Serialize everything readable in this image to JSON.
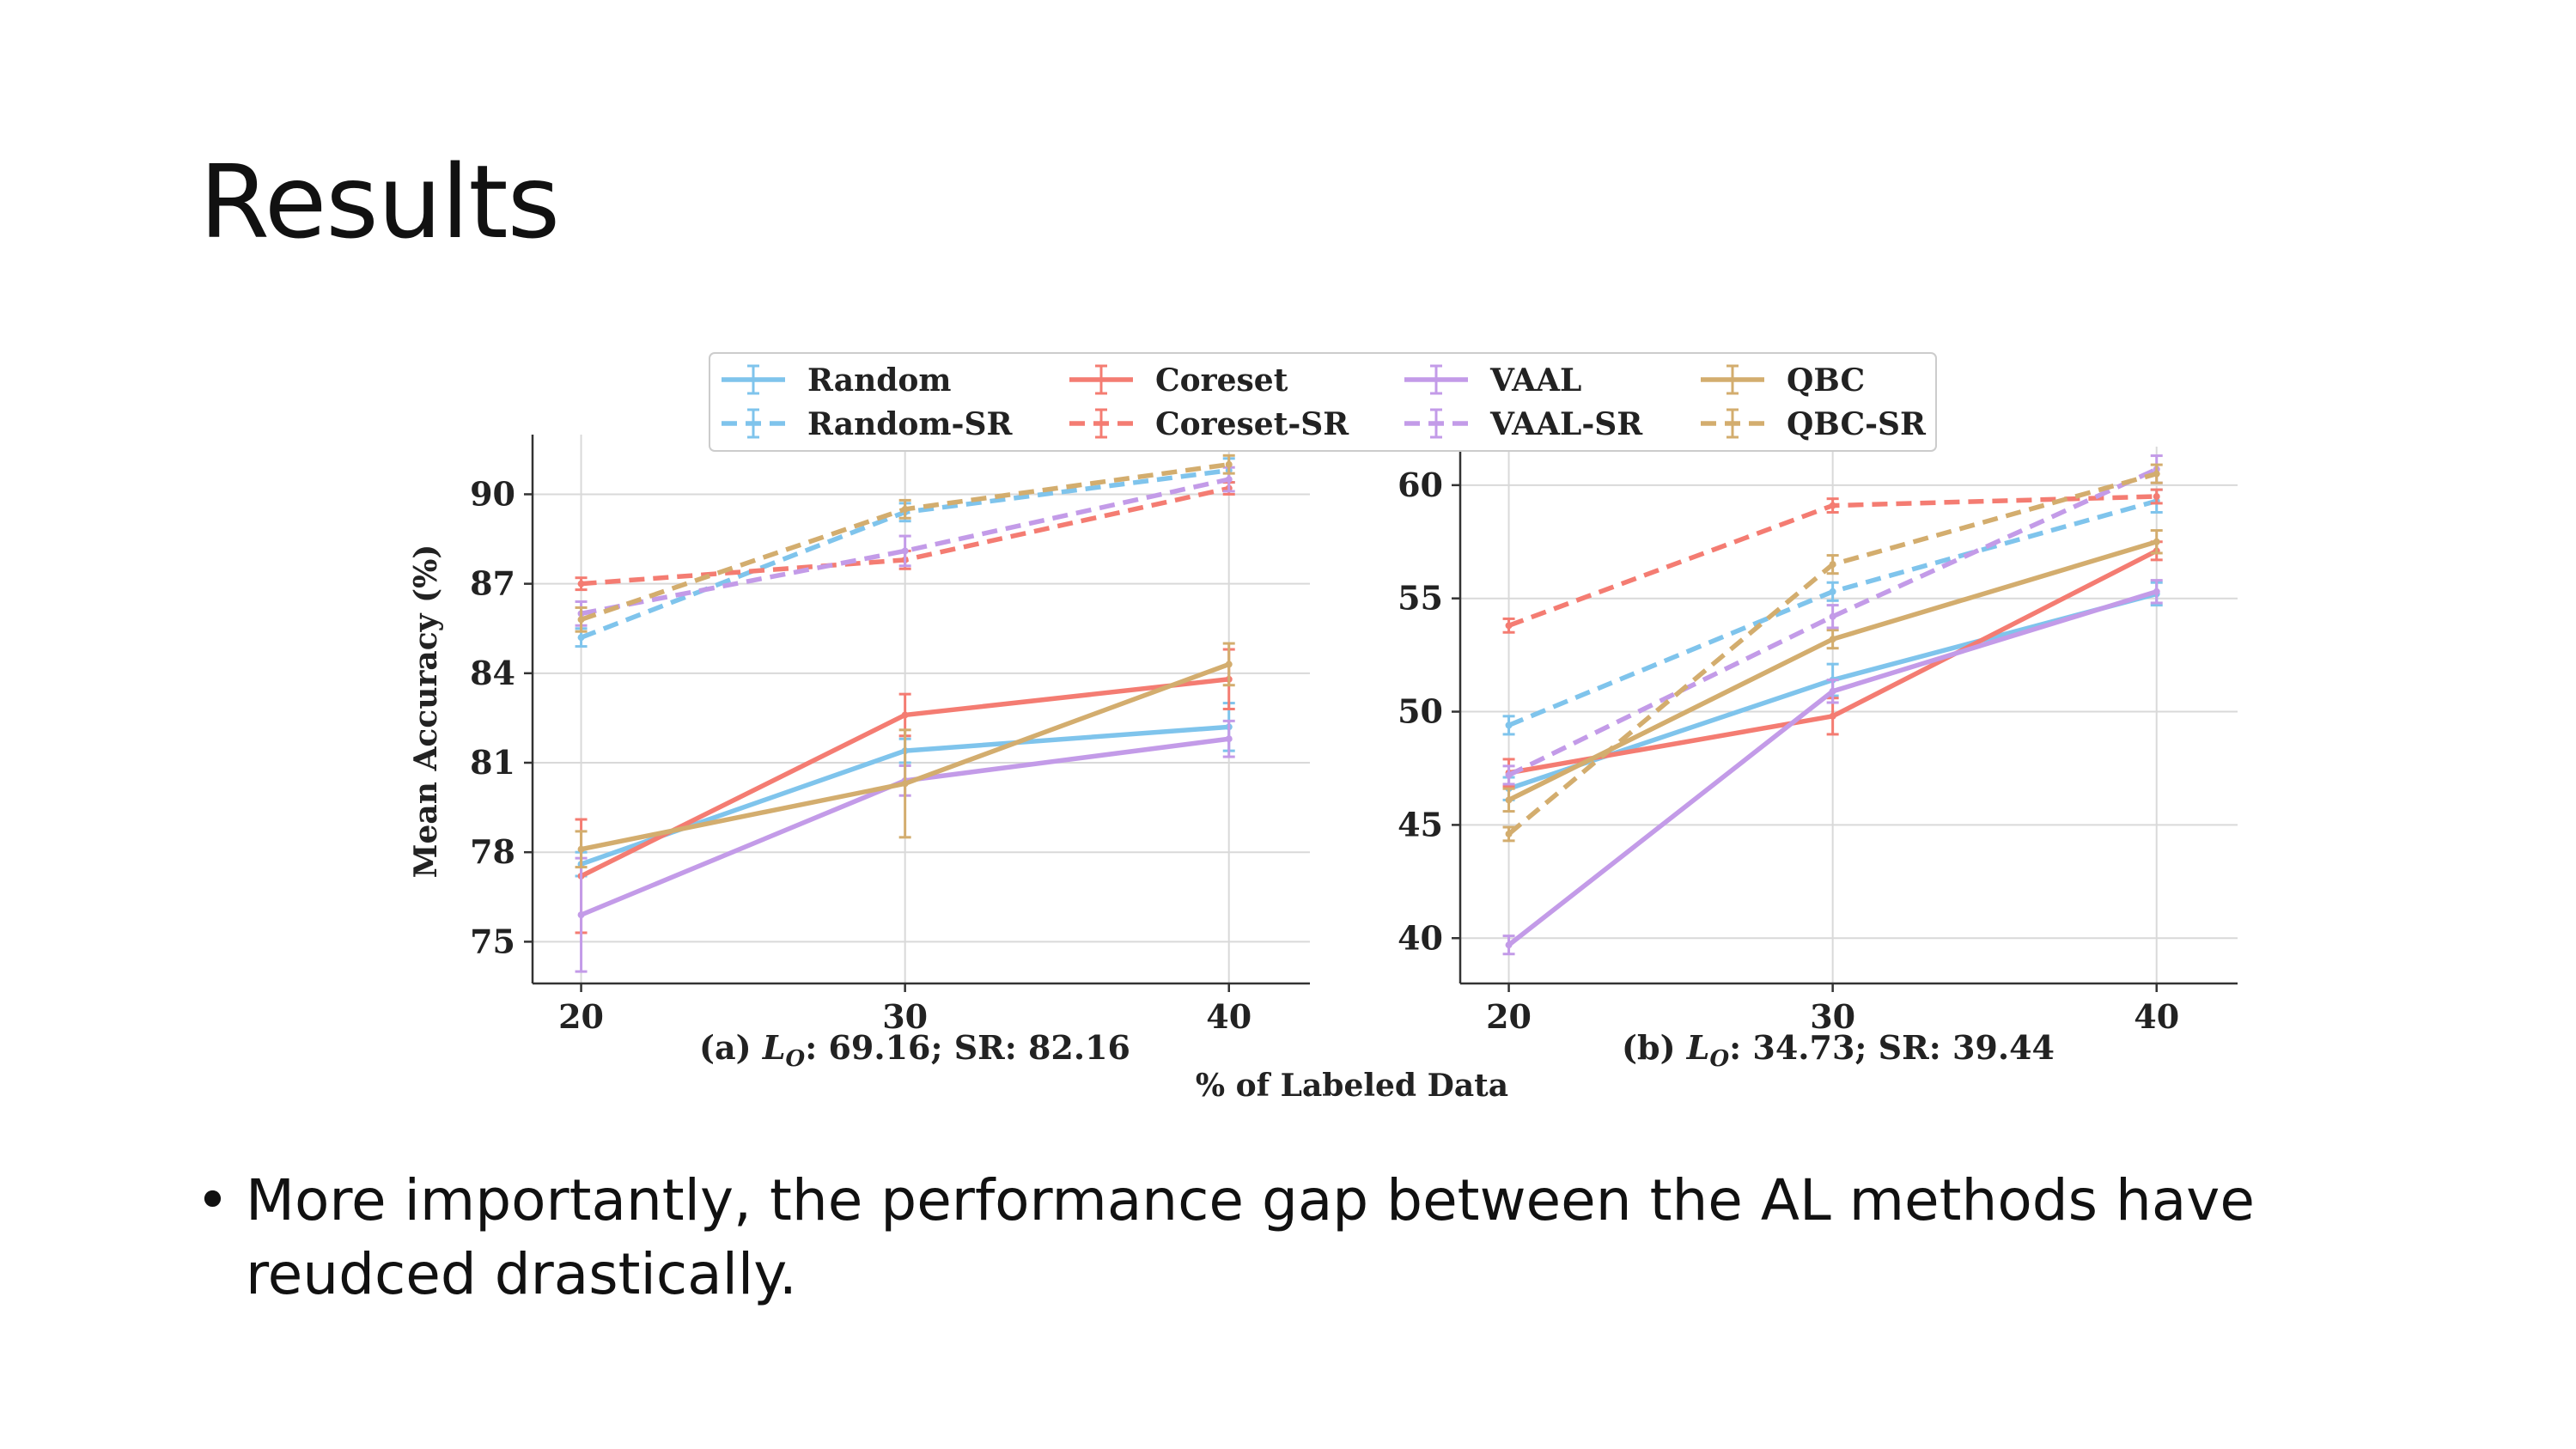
{
  "slide": {
    "title": "Results",
    "bullet_symbol": "•",
    "bullet_text": "More importantly, the performance gap between the AL methods have reudced drastically."
  },
  "shared": {
    "xlabel": "% of Labeled Data",
    "ylabel": "Mean Accuracy (%)",
    "legend_position": "top-center",
    "legend": [
      {
        "name": "Random",
        "color": "#7fc4ec",
        "dashed": false
      },
      {
        "name": "Random-SR",
        "color": "#7fc4ec",
        "dashed": true
      },
      {
        "name": "Coreset",
        "color": "#f47c72",
        "dashed": false
      },
      {
        "name": "Coreset-SR",
        "color": "#f47c72",
        "dashed": true
      },
      {
        "name": "VAAL",
        "color": "#c39be8",
        "dashed": false
      },
      {
        "name": "VAAL-SR",
        "color": "#c39be8",
        "dashed": true
      },
      {
        "name": "QBC",
        "color": "#d3ad6e",
        "dashed": false
      },
      {
        "name": "QBC-SR",
        "color": "#d3ad6e",
        "dashed": true
      }
    ]
  },
  "chart_data": [
    {
      "type": "line",
      "caption_prefix": "(a) ",
      "caption_symbol": "L",
      "caption_subscript": "O",
      "caption_suffix": ": 69.16; SR: 82.16",
      "x": [
        20,
        30,
        40
      ],
      "xticks": [
        20,
        30,
        40
      ],
      "yticks": [
        75,
        78,
        81,
        84,
        87,
        90
      ],
      "xlim": [
        18.5,
        42.5
      ],
      "ylim": [
        73.6,
        92.0
      ],
      "grid": true,
      "series": [
        {
          "name": "Random",
          "color": "#7fc4ec",
          "dashed": false,
          "values": [
            77.6,
            81.4,
            82.2
          ],
          "err": [
            0.4,
            0.4,
            0.8
          ]
        },
        {
          "name": "Coreset",
          "color": "#f47c72",
          "dashed": false,
          "values": [
            77.2,
            82.6,
            83.8
          ],
          "err": [
            1.9,
            0.7,
            1.0
          ]
        },
        {
          "name": "VAAL",
          "color": "#c39be8",
          "dashed": false,
          "values": [
            75.9,
            80.4,
            81.8
          ],
          "err": [
            1.9,
            0.5,
            0.6
          ]
        },
        {
          "name": "QBC",
          "color": "#d3ad6e",
          "dashed": false,
          "values": [
            78.1,
            80.3,
            84.3
          ],
          "err": [
            0.6,
            1.8,
            0.7
          ]
        },
        {
          "name": "Random-SR",
          "color": "#7fc4ec",
          "dashed": true,
          "values": [
            85.2,
            89.4,
            90.8
          ],
          "err": [
            0.3,
            0.3,
            0.4
          ]
        },
        {
          "name": "Coreset-SR",
          "color": "#f47c72",
          "dashed": true,
          "values": [
            87.0,
            87.8,
            90.2
          ],
          "err": [
            0.2,
            0.3,
            0.2
          ]
        },
        {
          "name": "VAAL-SR",
          "color": "#c39be8",
          "dashed": true,
          "values": [
            86.0,
            88.1,
            90.5
          ],
          "err": [
            0.4,
            0.5,
            0.4
          ]
        },
        {
          "name": "QBC-SR",
          "color": "#d3ad6e",
          "dashed": true,
          "values": [
            85.8,
            89.5,
            91.0
          ],
          "err": [
            0.4,
            0.3,
            0.3
          ]
        }
      ]
    },
    {
      "type": "line",
      "caption_prefix": "(b) ",
      "caption_symbol": "L",
      "caption_subscript": "O",
      "caption_suffix": ": 34.73; SR: 39.44",
      "x": [
        20,
        30,
        40
      ],
      "xticks": [
        20,
        30,
        40
      ],
      "yticks": [
        40,
        45,
        50,
        55,
        60
      ],
      "xlim": [
        18.5,
        42.5
      ],
      "ylim": [
        38.0,
        61.7
      ],
      "grid": true,
      "series": [
        {
          "name": "Random",
          "color": "#7fc4ec",
          "dashed": false,
          "values": [
            46.6,
            51.4,
            55.2
          ],
          "err": [
            0.5,
            0.7,
            0.5
          ]
        },
        {
          "name": "Coreset",
          "color": "#f47c72",
          "dashed": false,
          "values": [
            47.3,
            49.8,
            57.1
          ],
          "err": [
            0.6,
            0.8,
            0.4
          ]
        },
        {
          "name": "VAAL",
          "color": "#c39be8",
          "dashed": false,
          "values": [
            39.7,
            50.9,
            55.3
          ],
          "err": [
            0.4,
            0.5,
            0.5
          ]
        },
        {
          "name": "QBC",
          "color": "#d3ad6e",
          "dashed": false,
          "values": [
            46.1,
            53.2,
            57.5
          ],
          "err": [
            0.5,
            0.4,
            0.5
          ]
        },
        {
          "name": "Random-SR",
          "color": "#7fc4ec",
          "dashed": true,
          "values": [
            49.4,
            55.3,
            59.3
          ],
          "err": [
            0.4,
            0.4,
            0.5
          ]
        },
        {
          "name": "Coreset-SR",
          "color": "#f47c72",
          "dashed": true,
          "values": [
            53.8,
            59.1,
            59.5
          ],
          "err": [
            0.3,
            0.3,
            0.3
          ]
        },
        {
          "name": "VAAL-SR",
          "color": "#c39be8",
          "dashed": true,
          "values": [
            47.2,
            54.2,
            60.7
          ],
          "err": [
            0.4,
            0.5,
            0.6
          ]
        },
        {
          "name": "QBC-SR",
          "color": "#d3ad6e",
          "dashed": true,
          "values": [
            44.6,
            56.5,
            60.5
          ],
          "err": [
            0.3,
            0.4,
            0.4
          ]
        }
      ]
    }
  ]
}
